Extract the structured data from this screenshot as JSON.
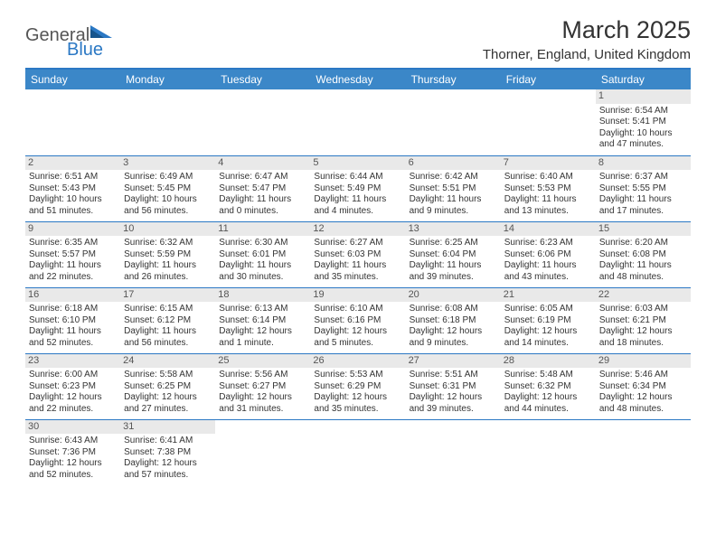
{
  "logo": {
    "part1": "General",
    "part2": "Blue"
  },
  "title": "March 2025",
  "location": "Thorner, England, United Kingdom",
  "colors": {
    "header_bg": "#3b87c8",
    "rule": "#2b78c4",
    "daynum_bg": "#e9e9e9",
    "text": "#333333"
  },
  "weekdays": [
    "Sunday",
    "Monday",
    "Tuesday",
    "Wednesday",
    "Thursday",
    "Friday",
    "Saturday"
  ],
  "weeks": [
    [
      null,
      null,
      null,
      null,
      null,
      null,
      {
        "n": "1",
        "sunrise": "Sunrise: 6:54 AM",
        "sunset": "Sunset: 5:41 PM",
        "daylight": "Daylight: 10 hours and 47 minutes."
      }
    ],
    [
      {
        "n": "2",
        "sunrise": "Sunrise: 6:51 AM",
        "sunset": "Sunset: 5:43 PM",
        "daylight": "Daylight: 10 hours and 51 minutes."
      },
      {
        "n": "3",
        "sunrise": "Sunrise: 6:49 AM",
        "sunset": "Sunset: 5:45 PM",
        "daylight": "Daylight: 10 hours and 56 minutes."
      },
      {
        "n": "4",
        "sunrise": "Sunrise: 6:47 AM",
        "sunset": "Sunset: 5:47 PM",
        "daylight": "Daylight: 11 hours and 0 minutes."
      },
      {
        "n": "5",
        "sunrise": "Sunrise: 6:44 AM",
        "sunset": "Sunset: 5:49 PM",
        "daylight": "Daylight: 11 hours and 4 minutes."
      },
      {
        "n": "6",
        "sunrise": "Sunrise: 6:42 AM",
        "sunset": "Sunset: 5:51 PM",
        "daylight": "Daylight: 11 hours and 9 minutes."
      },
      {
        "n": "7",
        "sunrise": "Sunrise: 6:40 AM",
        "sunset": "Sunset: 5:53 PM",
        "daylight": "Daylight: 11 hours and 13 minutes."
      },
      {
        "n": "8",
        "sunrise": "Sunrise: 6:37 AM",
        "sunset": "Sunset: 5:55 PM",
        "daylight": "Daylight: 11 hours and 17 minutes."
      }
    ],
    [
      {
        "n": "9",
        "sunrise": "Sunrise: 6:35 AM",
        "sunset": "Sunset: 5:57 PM",
        "daylight": "Daylight: 11 hours and 22 minutes."
      },
      {
        "n": "10",
        "sunrise": "Sunrise: 6:32 AM",
        "sunset": "Sunset: 5:59 PM",
        "daylight": "Daylight: 11 hours and 26 minutes."
      },
      {
        "n": "11",
        "sunrise": "Sunrise: 6:30 AM",
        "sunset": "Sunset: 6:01 PM",
        "daylight": "Daylight: 11 hours and 30 minutes."
      },
      {
        "n": "12",
        "sunrise": "Sunrise: 6:27 AM",
        "sunset": "Sunset: 6:03 PM",
        "daylight": "Daylight: 11 hours and 35 minutes."
      },
      {
        "n": "13",
        "sunrise": "Sunrise: 6:25 AM",
        "sunset": "Sunset: 6:04 PM",
        "daylight": "Daylight: 11 hours and 39 minutes."
      },
      {
        "n": "14",
        "sunrise": "Sunrise: 6:23 AM",
        "sunset": "Sunset: 6:06 PM",
        "daylight": "Daylight: 11 hours and 43 minutes."
      },
      {
        "n": "15",
        "sunrise": "Sunrise: 6:20 AM",
        "sunset": "Sunset: 6:08 PM",
        "daylight": "Daylight: 11 hours and 48 minutes."
      }
    ],
    [
      {
        "n": "16",
        "sunrise": "Sunrise: 6:18 AM",
        "sunset": "Sunset: 6:10 PM",
        "daylight": "Daylight: 11 hours and 52 minutes."
      },
      {
        "n": "17",
        "sunrise": "Sunrise: 6:15 AM",
        "sunset": "Sunset: 6:12 PM",
        "daylight": "Daylight: 11 hours and 56 minutes."
      },
      {
        "n": "18",
        "sunrise": "Sunrise: 6:13 AM",
        "sunset": "Sunset: 6:14 PM",
        "daylight": "Daylight: 12 hours and 1 minute."
      },
      {
        "n": "19",
        "sunrise": "Sunrise: 6:10 AM",
        "sunset": "Sunset: 6:16 PM",
        "daylight": "Daylight: 12 hours and 5 minutes."
      },
      {
        "n": "20",
        "sunrise": "Sunrise: 6:08 AM",
        "sunset": "Sunset: 6:18 PM",
        "daylight": "Daylight: 12 hours and 9 minutes."
      },
      {
        "n": "21",
        "sunrise": "Sunrise: 6:05 AM",
        "sunset": "Sunset: 6:19 PM",
        "daylight": "Daylight: 12 hours and 14 minutes."
      },
      {
        "n": "22",
        "sunrise": "Sunrise: 6:03 AM",
        "sunset": "Sunset: 6:21 PM",
        "daylight": "Daylight: 12 hours and 18 minutes."
      }
    ],
    [
      {
        "n": "23",
        "sunrise": "Sunrise: 6:00 AM",
        "sunset": "Sunset: 6:23 PM",
        "daylight": "Daylight: 12 hours and 22 minutes."
      },
      {
        "n": "24",
        "sunrise": "Sunrise: 5:58 AM",
        "sunset": "Sunset: 6:25 PM",
        "daylight": "Daylight: 12 hours and 27 minutes."
      },
      {
        "n": "25",
        "sunrise": "Sunrise: 5:56 AM",
        "sunset": "Sunset: 6:27 PM",
        "daylight": "Daylight: 12 hours and 31 minutes."
      },
      {
        "n": "26",
        "sunrise": "Sunrise: 5:53 AM",
        "sunset": "Sunset: 6:29 PM",
        "daylight": "Daylight: 12 hours and 35 minutes."
      },
      {
        "n": "27",
        "sunrise": "Sunrise: 5:51 AM",
        "sunset": "Sunset: 6:31 PM",
        "daylight": "Daylight: 12 hours and 39 minutes."
      },
      {
        "n": "28",
        "sunrise": "Sunrise: 5:48 AM",
        "sunset": "Sunset: 6:32 PM",
        "daylight": "Daylight: 12 hours and 44 minutes."
      },
      {
        "n": "29",
        "sunrise": "Sunrise: 5:46 AM",
        "sunset": "Sunset: 6:34 PM",
        "daylight": "Daylight: 12 hours and 48 minutes."
      }
    ],
    [
      {
        "n": "30",
        "sunrise": "Sunrise: 6:43 AM",
        "sunset": "Sunset: 7:36 PM",
        "daylight": "Daylight: 12 hours and 52 minutes."
      },
      {
        "n": "31",
        "sunrise": "Sunrise: 6:41 AM",
        "sunset": "Sunset: 7:38 PM",
        "daylight": "Daylight: 12 hours and 57 minutes."
      },
      null,
      null,
      null,
      null,
      null
    ]
  ]
}
